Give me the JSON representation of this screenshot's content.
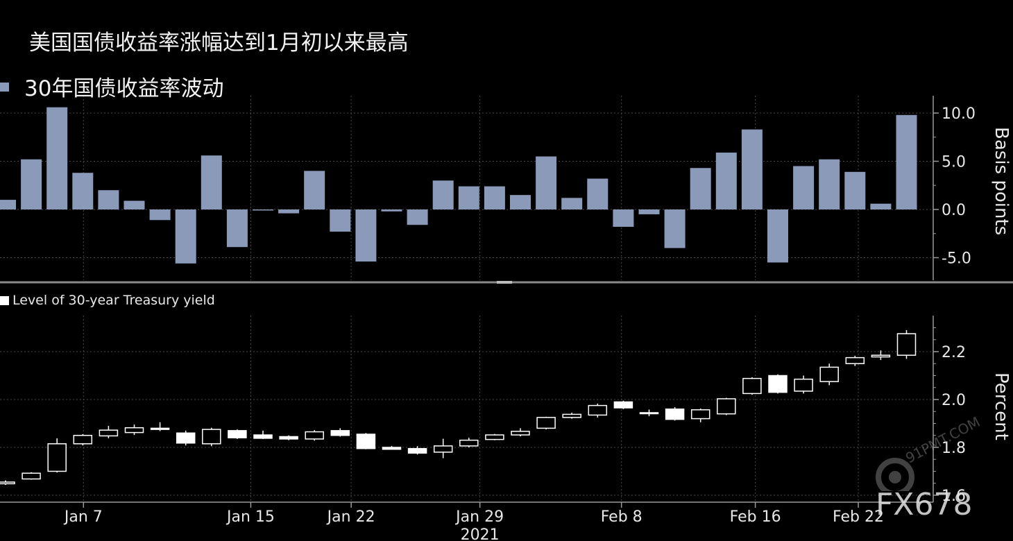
{
  "title": "美国国债收益率涨幅达到1月初以来最高",
  "watermark": "FX678",
  "watermark_small": "91PMT.COM",
  "colors": {
    "bar": "#8a9ab8",
    "grid": "#4a4a4a",
    "axis": "#9a9a9a",
    "text": "#e8e8e8",
    "candle": "#ffffff"
  },
  "chart_data": [
    {
      "type": "bar",
      "legend": "30年国债收益率波动",
      "ylabel": "Basis points",
      "ylim": [
        -7.5,
        12.5
      ],
      "yticks": [
        "10.0",
        "5.0",
        "0.0",
        "-5.0"
      ],
      "values": [
        1.0,
        5.2,
        10.6,
        3.8,
        2.0,
        0.9,
        -1.1,
        -5.6,
        5.6,
        -3.9,
        -0.1,
        -0.4,
        4.0,
        -2.3,
        -5.4,
        -0.2,
        -1.6,
        3.0,
        2.4,
        2.4,
        1.5,
        5.5,
        1.2,
        3.2,
        -1.8,
        -0.5,
        -4.0,
        4.3,
        5.9,
        8.3,
        -5.5,
        4.5,
        5.2,
        3.9,
        0.6,
        9.8
      ]
    },
    {
      "type": "candlestick",
      "legend": "Level of 30-year Treasury yield",
      "ylabel": "Percent",
      "ylim": [
        1.55,
        2.35
      ],
      "yticks": [
        "2.2",
        "2.0",
        "1.8",
        "1.6"
      ],
      "xlabel": "2021",
      "xticks": [
        "Jan 7",
        "Jan 15",
        "Jan 22",
        "Jan 29",
        "Feb 8",
        "Feb 16",
        "Feb 22"
      ],
      "ohlc": [
        [
          1.648,
          1.662,
          1.643,
          1.655
        ],
        [
          1.668,
          1.696,
          1.665,
          1.692
        ],
        [
          1.7,
          1.838,
          1.695,
          1.815
        ],
        [
          1.815,
          1.855,
          1.808,
          1.85
        ],
        [
          1.848,
          1.89,
          1.838,
          1.872
        ],
        [
          1.862,
          1.895,
          1.852,
          1.882
        ],
        [
          1.88,
          1.905,
          1.868,
          1.875
        ],
        [
          1.86,
          1.87,
          1.808,
          1.818
        ],
        [
          1.815,
          1.882,
          1.805,
          1.875
        ],
        [
          1.87,
          1.875,
          1.835,
          1.84
        ],
        [
          1.852,
          1.87,
          1.835,
          1.838
        ],
        [
          1.845,
          1.85,
          1.83,
          1.835
        ],
        [
          1.835,
          1.872,
          1.828,
          1.865
        ],
        [
          1.87,
          1.88,
          1.845,
          1.85
        ],
        [
          1.855,
          1.86,
          1.792,
          1.795
        ],
        [
          1.8,
          1.806,
          1.79,
          1.792
        ],
        [
          1.795,
          1.805,
          1.77,
          1.776
        ],
        [
          1.78,
          1.836,
          1.755,
          1.806
        ],
        [
          1.806,
          1.84,
          1.8,
          1.83
        ],
        [
          1.833,
          1.856,
          1.83,
          1.852
        ],
        [
          1.852,
          1.88,
          1.846,
          1.867
        ],
        [
          1.88,
          1.928,
          1.875,
          1.925
        ],
        [
          1.925,
          1.945,
          1.92,
          1.938
        ],
        [
          1.935,
          1.983,
          1.925,
          1.975
        ],
        [
          1.99,
          1.995,
          1.96,
          1.965
        ],
        [
          1.945,
          1.958,
          1.93,
          1.945
        ],
        [
          1.96,
          1.968,
          1.912,
          1.917
        ],
        [
          1.92,
          1.962,
          1.905,
          1.957
        ],
        [
          1.94,
          2.007,
          1.935,
          2.003
        ],
        [
          2.025,
          2.093,
          2.02,
          2.088
        ],
        [
          2.1,
          2.105,
          2.025,
          2.03
        ],
        [
          2.035,
          2.1,
          2.025,
          2.085
        ],
        [
          2.075,
          2.15,
          2.06,
          2.135
        ],
        [
          2.15,
          2.183,
          2.14,
          2.175
        ],
        [
          2.178,
          2.205,
          2.165,
          2.185
        ],
        [
          2.185,
          2.29,
          2.17,
          2.275
        ]
      ]
    }
  ]
}
